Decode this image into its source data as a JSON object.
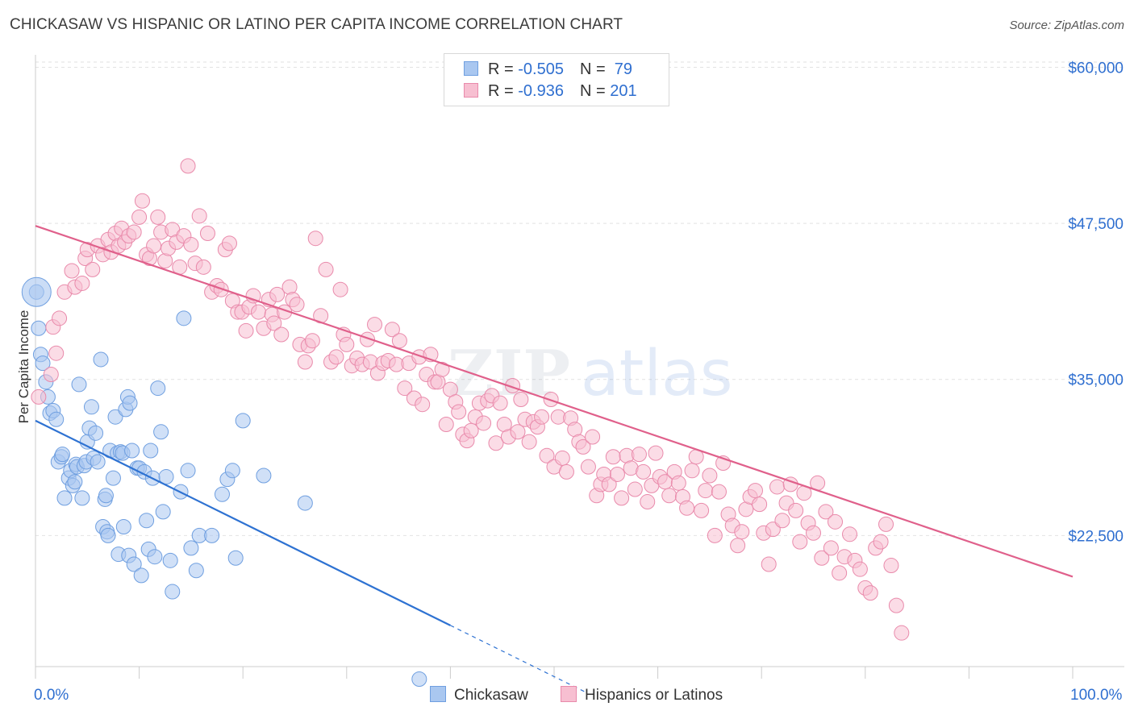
{
  "header": {
    "title": "CHICKASAW VS HISPANIC OR LATINO PER CAPITA INCOME CORRELATION CHART",
    "source": "Source: ZipAtlas.com"
  },
  "watermark": {
    "zip": "ZIP",
    "atlas": "atlas"
  },
  "legend": {
    "rows": [
      {
        "r_label": "R = ",
        "r_value": "-0.505",
        "n_label": "N = ",
        "n_value": " 79",
        "color": "#a9c7f0",
        "border": "#6f9fe0"
      },
      {
        "r_label": "R = ",
        "r_value": "-0.936",
        "n_label": "N = ",
        "n_value": "201",
        "color": "#f7bfd1",
        "border": "#e98aab"
      }
    ]
  },
  "bottom_legend": {
    "items": [
      {
        "label": "Chickasaw",
        "color": "#a9c7f0",
        "border": "#6f9fe0"
      },
      {
        "label": "Hispanics or Latinos",
        "color": "#f7bfd1",
        "border": "#e98aab"
      }
    ]
  },
  "chart_data": {
    "type": "scatter",
    "title": "CHICKASAW VS HISPANIC OR LATINO PER CAPITA INCOME CORRELATION CHART",
    "xlabel": "",
    "ylabel": "Per Capita Income",
    "xlim": [
      0,
      100
    ],
    "ylim": [
      12000,
      61000
    ],
    "x_tick_labels": [
      "0.0%",
      "100.0%"
    ],
    "y_ticks": [
      {
        "value": 22500,
        "label": "$22,500"
      },
      {
        "value": 35000,
        "label": "$35,000"
      },
      {
        "value": 47500,
        "label": "$47,500"
      },
      {
        "value": 60000,
        "label": "$60,000"
      }
    ],
    "grid": true,
    "legend_position": "top-center",
    "series": [
      {
        "name": "Chickasaw",
        "color": "#a9c7f0",
        "stroke": "#6f9fe0",
        "line_color": "#2e72d2",
        "trend": {
          "x0": 0,
          "y0": 31700,
          "x1": 40,
          "y1": 15300,
          "dash_to_x": 53
        },
        "points": [
          [
            0.1,
            42000
          ],
          [
            0.3,
            39100
          ],
          [
            0.5,
            37000
          ],
          [
            0.7,
            36300
          ],
          [
            1.0,
            34800
          ],
          [
            1.2,
            33600
          ],
          [
            1.4,
            32300
          ],
          [
            1.7,
            32500
          ],
          [
            2.0,
            31800
          ],
          [
            2.2,
            28400
          ],
          [
            2.5,
            28800
          ],
          [
            2.6,
            29000
          ],
          [
            2.8,
            25500
          ],
          [
            3.2,
            27100
          ],
          [
            3.4,
            27700
          ],
          [
            3.6,
            26500
          ],
          [
            3.8,
            26800
          ],
          [
            3.9,
            28200
          ],
          [
            4.0,
            28000
          ],
          [
            4.2,
            34600
          ],
          [
            4.5,
            25500
          ],
          [
            4.7,
            28100
          ],
          [
            4.9,
            28400
          ],
          [
            5.0,
            30000
          ],
          [
            5.2,
            31100
          ],
          [
            5.4,
            32800
          ],
          [
            5.6,
            28700
          ],
          [
            5.8,
            30700
          ],
          [
            6.0,
            28400
          ],
          [
            6.3,
            36600
          ],
          [
            6.5,
            23200
          ],
          [
            6.7,
            25400
          ],
          [
            6.8,
            25700
          ],
          [
            6.9,
            22800
          ],
          [
            7.0,
            22500
          ],
          [
            7.2,
            29300
          ],
          [
            7.5,
            27100
          ],
          [
            7.7,
            32000
          ],
          [
            7.9,
            29100
          ],
          [
            8.0,
            21000
          ],
          [
            8.2,
            29200
          ],
          [
            8.4,
            29100
          ],
          [
            8.5,
            23200
          ],
          [
            8.7,
            32600
          ],
          [
            8.9,
            33600
          ],
          [
            9.0,
            20900
          ],
          [
            9.1,
            33100
          ],
          [
            9.3,
            29300
          ],
          [
            9.5,
            20200
          ],
          [
            9.8,
            27900
          ],
          [
            10.0,
            27900
          ],
          [
            10.2,
            19300
          ],
          [
            10.5,
            27600
          ],
          [
            10.7,
            23700
          ],
          [
            10.9,
            21400
          ],
          [
            11.1,
            29300
          ],
          [
            11.3,
            27100
          ],
          [
            11.5,
            20800
          ],
          [
            11.8,
            34300
          ],
          [
            12.1,
            30800
          ],
          [
            12.3,
            24400
          ],
          [
            12.6,
            27200
          ],
          [
            13.0,
            20500
          ],
          [
            13.2,
            18000
          ],
          [
            14.0,
            26000
          ],
          [
            14.3,
            39900
          ],
          [
            14.7,
            27700
          ],
          [
            15.0,
            21500
          ],
          [
            15.5,
            19700
          ],
          [
            15.8,
            22500
          ],
          [
            17.0,
            22500
          ],
          [
            18.0,
            25800
          ],
          [
            18.5,
            27000
          ],
          [
            19.0,
            27700
          ],
          [
            19.3,
            20700
          ],
          [
            20.0,
            31700
          ],
          [
            22.0,
            27300
          ],
          [
            26.0,
            25100
          ],
          [
            37.0,
            11000
          ]
        ],
        "big_point": [
          0.1,
          42000
        ]
      },
      {
        "name": "Hispanics or Latinos",
        "color": "#f7bfd1",
        "stroke": "#e98aab",
        "line_color": "#e0608b",
        "trend": {
          "x0": 0,
          "y0": 47300,
          "x1": 100,
          "y1": 19200
        },
        "points": [
          [
            0.3,
            33600
          ],
          [
            1.5,
            35400
          ],
          [
            1.7,
            39200
          ],
          [
            2.0,
            37100
          ],
          [
            2.3,
            39900
          ],
          [
            2.8,
            42000
          ],
          [
            3.5,
            43700
          ],
          [
            3.8,
            42400
          ],
          [
            4.5,
            42700
          ],
          [
            4.8,
            44700
          ],
          [
            5.0,
            45400
          ],
          [
            5.5,
            43800
          ],
          [
            6.0,
            45700
          ],
          [
            6.5,
            45000
          ],
          [
            7.0,
            46200
          ],
          [
            7.3,
            45200
          ],
          [
            7.7,
            46700
          ],
          [
            8.0,
            45700
          ],
          [
            8.3,
            47100
          ],
          [
            8.6,
            46000
          ],
          [
            9.0,
            46500
          ],
          [
            9.5,
            46800
          ],
          [
            10.0,
            48000
          ],
          [
            10.3,
            49300
          ],
          [
            10.7,
            45000
          ],
          [
            11.0,
            44700
          ],
          [
            11.4,
            45700
          ],
          [
            11.8,
            48000
          ],
          [
            12.1,
            46800
          ],
          [
            12.5,
            44500
          ],
          [
            12.8,
            45500
          ],
          [
            13.2,
            47000
          ],
          [
            13.6,
            46000
          ],
          [
            13.9,
            44000
          ],
          [
            14.3,
            46500
          ],
          [
            14.7,
            52100
          ],
          [
            15.0,
            45800
          ],
          [
            15.4,
            44300
          ],
          [
            15.8,
            48100
          ],
          [
            16.2,
            44000
          ],
          [
            16.6,
            46700
          ],
          [
            17.0,
            42000
          ],
          [
            17.5,
            42500
          ],
          [
            17.9,
            42200
          ],
          [
            18.3,
            45400
          ],
          [
            18.7,
            45900
          ],
          [
            19.0,
            41300
          ],
          [
            19.5,
            40400
          ],
          [
            19.9,
            40400
          ],
          [
            20.3,
            38900
          ],
          [
            20.6,
            40800
          ],
          [
            21.0,
            41700
          ],
          [
            21.5,
            40400
          ],
          [
            22.0,
            39100
          ],
          [
            22.5,
            41400
          ],
          [
            22.8,
            40200
          ],
          [
            23.0,
            39500
          ],
          [
            23.3,
            41800
          ],
          [
            23.7,
            38600
          ],
          [
            24.0,
            40400
          ],
          [
            24.5,
            42400
          ],
          [
            24.8,
            41400
          ],
          [
            25.2,
            41000
          ],
          [
            25.5,
            37800
          ],
          [
            26.0,
            36400
          ],
          [
            26.3,
            37700
          ],
          [
            26.7,
            38100
          ],
          [
            27.0,
            46300
          ],
          [
            27.5,
            40100
          ],
          [
            28.0,
            43800
          ],
          [
            28.5,
            36400
          ],
          [
            29.0,
            36800
          ],
          [
            29.4,
            42200
          ],
          [
            29.7,
            38600
          ],
          [
            30.0,
            37800
          ],
          [
            30.5,
            36100
          ],
          [
            31.0,
            36700
          ],
          [
            31.5,
            36200
          ],
          [
            32.0,
            38200
          ],
          [
            32.3,
            36400
          ],
          [
            32.7,
            39400
          ],
          [
            33.0,
            35500
          ],
          [
            33.5,
            36300
          ],
          [
            34.0,
            36500
          ],
          [
            34.4,
            39000
          ],
          [
            34.8,
            36200
          ],
          [
            35.1,
            38100
          ],
          [
            35.6,
            34300
          ],
          [
            36.0,
            36300
          ],
          [
            36.5,
            33500
          ],
          [
            37.0,
            36800
          ],
          [
            37.3,
            33000
          ],
          [
            37.7,
            35400
          ],
          [
            38.1,
            37000
          ],
          [
            38.5,
            34800
          ],
          [
            38.8,
            34800
          ],
          [
            39.2,
            35800
          ],
          [
            39.6,
            31400
          ],
          [
            40.0,
            34200
          ],
          [
            40.5,
            33200
          ],
          [
            40.8,
            32400
          ],
          [
            41.2,
            30600
          ],
          [
            41.6,
            30100
          ],
          [
            42.0,
            30900
          ],
          [
            42.4,
            32000
          ],
          [
            42.8,
            33100
          ],
          [
            43.2,
            31500
          ],
          [
            43.6,
            33300
          ],
          [
            44.0,
            33700
          ],
          [
            44.4,
            29900
          ],
          [
            44.8,
            33100
          ],
          [
            45.2,
            31400
          ],
          [
            45.6,
            30400
          ],
          [
            46.0,
            34500
          ],
          [
            46.5,
            30800
          ],
          [
            46.8,
            33400
          ],
          [
            47.2,
            31800
          ],
          [
            47.6,
            30000
          ],
          [
            48.0,
            31600
          ],
          [
            48.4,
            31200
          ],
          [
            48.8,
            32000
          ],
          [
            49.3,
            28900
          ],
          [
            49.7,
            33400
          ],
          [
            50.0,
            28000
          ],
          [
            50.4,
            32000
          ],
          [
            50.8,
            28700
          ],
          [
            51.2,
            27600
          ],
          [
            51.6,
            31900
          ],
          [
            52.0,
            31000
          ],
          [
            52.4,
            30000
          ],
          [
            52.8,
            29600
          ],
          [
            53.3,
            28000
          ],
          [
            53.7,
            30400
          ],
          [
            54.1,
            25700
          ],
          [
            54.5,
            26600
          ],
          [
            54.8,
            27400
          ],
          [
            55.3,
            26600
          ],
          [
            55.7,
            28800
          ],
          [
            56.1,
            27400
          ],
          [
            56.5,
            25500
          ],
          [
            57.0,
            28900
          ],
          [
            57.4,
            27900
          ],
          [
            57.8,
            26200
          ],
          [
            58.2,
            29000
          ],
          [
            58.6,
            27600
          ],
          [
            59.0,
            25200
          ],
          [
            59.4,
            26500
          ],
          [
            59.8,
            29100
          ],
          [
            60.2,
            27200
          ],
          [
            60.7,
            26800
          ],
          [
            61.1,
            25700
          ],
          [
            61.6,
            27600
          ],
          [
            62.0,
            26700
          ],
          [
            62.4,
            25600
          ],
          [
            62.8,
            24700
          ],
          [
            63.3,
            27700
          ],
          [
            63.7,
            28800
          ],
          [
            64.2,
            24500
          ],
          [
            64.6,
            26100
          ],
          [
            65.0,
            27300
          ],
          [
            65.5,
            22500
          ],
          [
            65.9,
            26000
          ],
          [
            66.3,
            28300
          ],
          [
            66.8,
            24200
          ],
          [
            67.2,
            23300
          ],
          [
            67.7,
            21700
          ],
          [
            68.1,
            22800
          ],
          [
            68.5,
            24600
          ],
          [
            68.9,
            25600
          ],
          [
            69.4,
            26100
          ],
          [
            69.8,
            25000
          ],
          [
            70.2,
            22700
          ],
          [
            70.7,
            20200
          ],
          [
            71.1,
            23000
          ],
          [
            71.5,
            26400
          ],
          [
            72.0,
            23700
          ],
          [
            72.4,
            25100
          ],
          [
            72.8,
            26600
          ],
          [
            73.3,
            24500
          ],
          [
            73.7,
            22000
          ],
          [
            74.1,
            25900
          ],
          [
            74.5,
            23500
          ],
          [
            75.0,
            22700
          ],
          [
            75.4,
            26700
          ],
          [
            75.8,
            20700
          ],
          [
            76.2,
            24400
          ],
          [
            76.7,
            21500
          ],
          [
            77.1,
            23600
          ],
          [
            77.5,
            19500
          ],
          [
            78.0,
            20800
          ],
          [
            78.5,
            22600
          ],
          [
            79.0,
            20500
          ],
          [
            79.5,
            19800
          ],
          [
            80.0,
            18300
          ],
          [
            80.5,
            17900
          ],
          [
            81.0,
            21500
          ],
          [
            81.5,
            22000
          ],
          [
            82.0,
            23400
          ],
          [
            82.5,
            20100
          ],
          [
            83.0,
            16900
          ],
          [
            83.5,
            14700
          ]
        ]
      }
    ]
  }
}
